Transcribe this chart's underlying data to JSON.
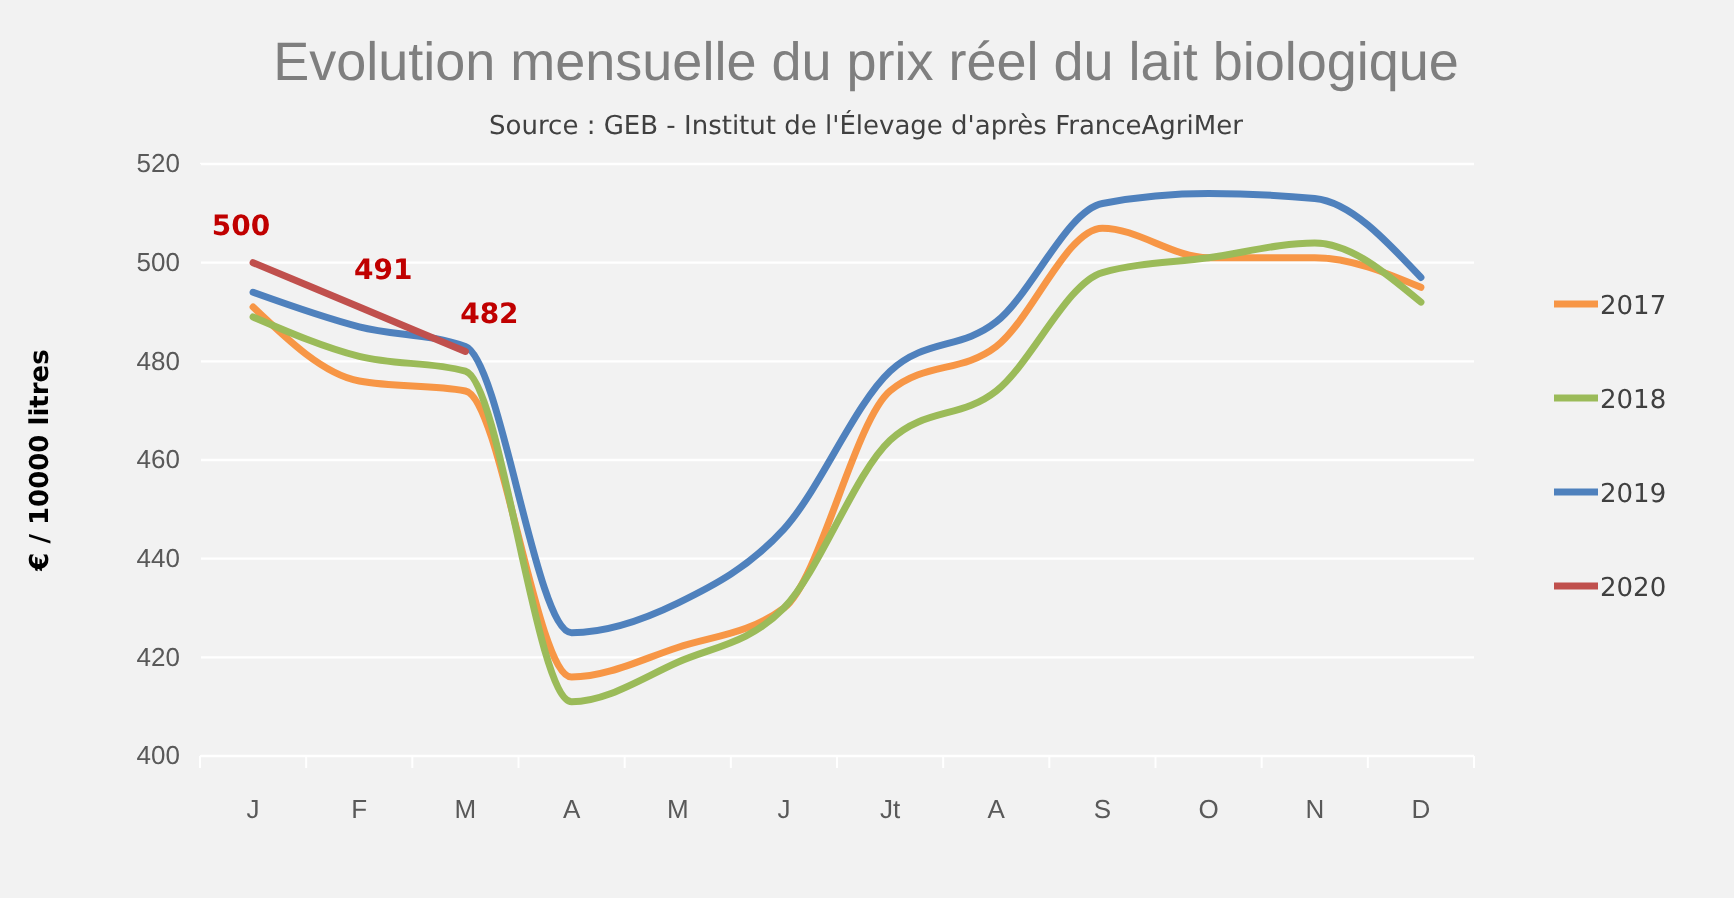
{
  "chart_data": {
    "type": "line",
    "title": "Evolution mensuelle du prix réel du lait biologique",
    "subtitle": "Source : GEB - Institut de l'Élevage d'après  FranceAgriMer",
    "ylabel": "€ / 10000 litres",
    "categories": [
      "J",
      "F",
      "M",
      "A",
      "M",
      "J",
      "Jt",
      "A",
      "S",
      "O",
      "N",
      "D"
    ],
    "ylim": [
      400,
      520
    ],
    "yticks": [
      400,
      420,
      440,
      460,
      480,
      500,
      520
    ],
    "grid": "y",
    "legend": "right",
    "line_style": "solid",
    "marker": "none",
    "series": [
      {
        "name": "2017",
        "color": "#f79646",
        "values": [
          491,
          476,
          474,
          416,
          422,
          430,
          474,
          483,
          507,
          501,
          501,
          495
        ]
      },
      {
        "name": "2018",
        "color": "#9bbb59",
        "values": [
          489,
          481,
          478,
          411,
          419,
          430,
          464,
          474,
          498,
          501,
          504,
          492
        ]
      },
      {
        "name": "2019",
        "color": "#4f81bd",
        "values": [
          494,
          487,
          483,
          425,
          431,
          446,
          478,
          488,
          512,
          514,
          513,
          497
        ]
      },
      {
        "name": "2020",
        "color": "#c0504d",
        "values": [
          500,
          491,
          482,
          null,
          null,
          null,
          null,
          null,
          null,
          null,
          null,
          null
        ],
        "value_labels": [
          "500",
          "491",
          "482",
          null,
          null,
          null,
          null,
          null,
          null,
          null,
          null,
          null
        ]
      }
    ]
  }
}
